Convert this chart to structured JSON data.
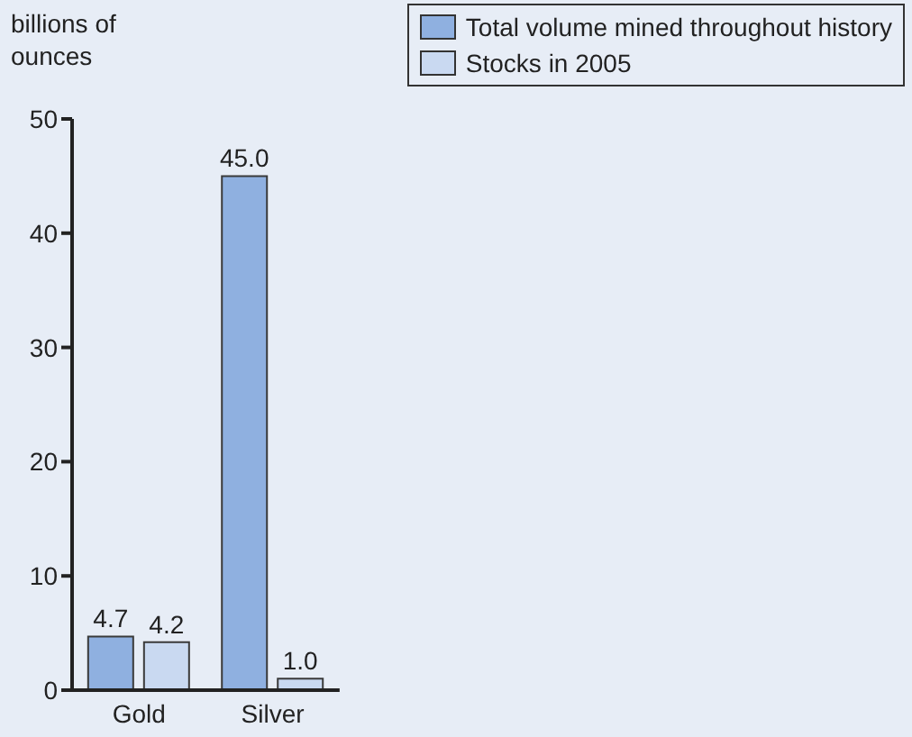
{
  "chart_data": {
    "type": "bar",
    "ylabel": "billions of ounces",
    "categories": [
      "Gold",
      "Silver"
    ],
    "series": [
      {
        "name": "Total volume mined throughout history",
        "color": "#8fb0e0",
        "values": [
          4.7,
          45.0
        ],
        "value_labels": [
          "4.7",
          "45.0"
        ]
      },
      {
        "name": "Stocks in 2005",
        "color": "#c9d9f1",
        "values": [
          4.2,
          1.0
        ],
        "value_labels": [
          "4.2",
          "1.0"
        ]
      }
    ],
    "ylim": [
      0,
      50
    ],
    "yticks": [
      0,
      10,
      20,
      30,
      40,
      50
    ],
    "legend": "top right"
  }
}
